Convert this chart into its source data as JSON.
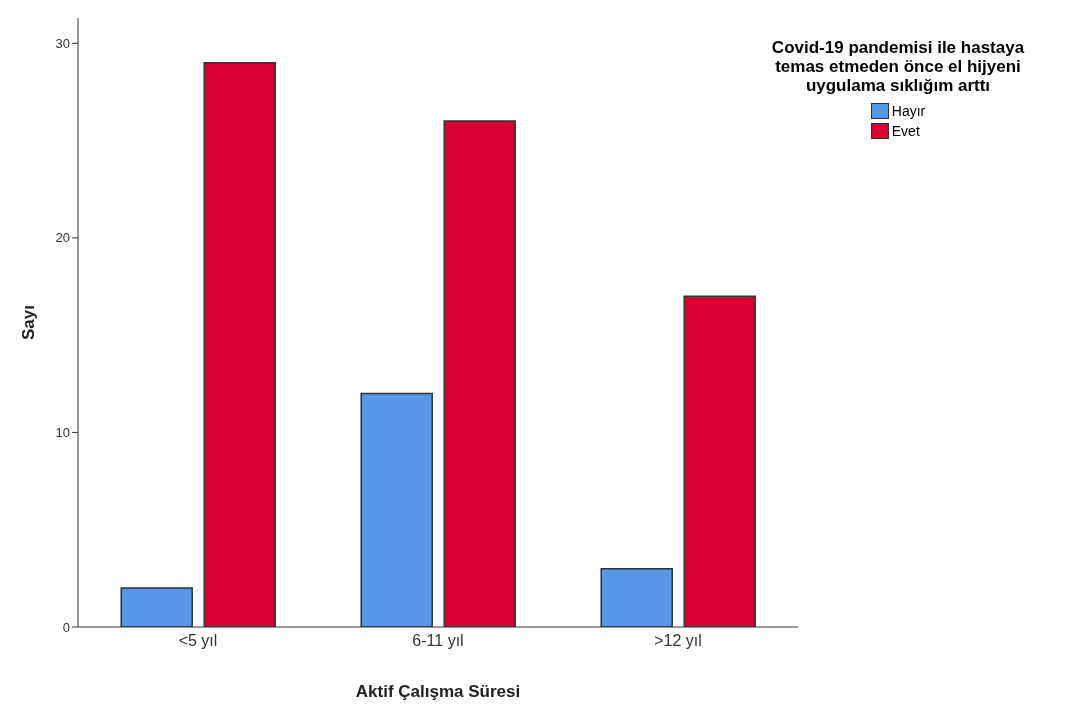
{
  "chart_data": {
    "type": "bar",
    "xlabel": "Aktif Çalışma Süresi",
    "ylabel": "Sayı",
    "legend_title": "Covid-19 pandemisi ile hastaya temas etmeden önce el hijyeni uygulama sıklığım arttı",
    "categories": [
      "<5 yıl",
      "6-11 yıl",
      ">12 yıl"
    ],
    "series": [
      {
        "name": "Hayır",
        "color": "#5596e6",
        "values": [
          2,
          12,
          3
        ]
      },
      {
        "name": "Evet",
        "color": "#d70032",
        "values": [
          29,
          26,
          17
        ]
      }
    ],
    "ylim": [
      0,
      31.3
    ],
    "yticks": [
      0,
      10,
      20,
      30
    ],
    "grid": false,
    "legend": "top right"
  }
}
